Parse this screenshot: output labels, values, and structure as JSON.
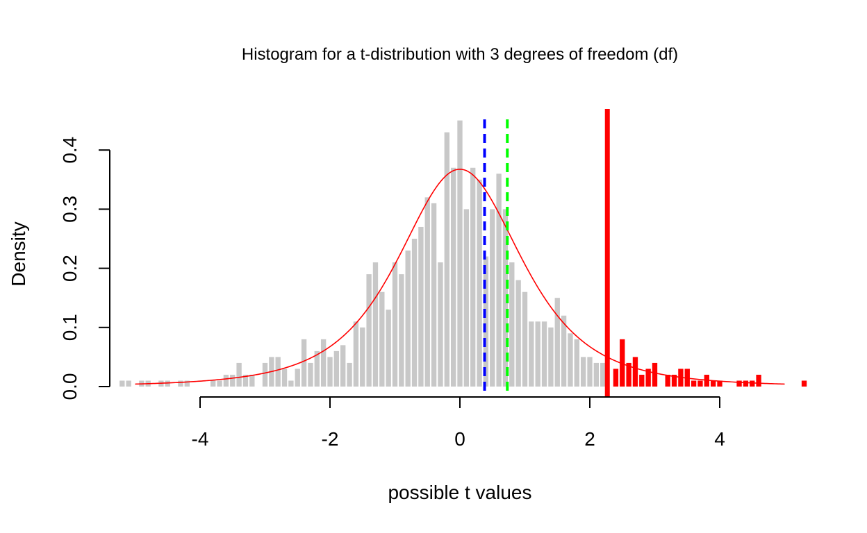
{
  "chart_data": {
    "type": "histogram",
    "title": "Histogram for a t-distribution with 3 degrees of freedom (df)",
    "xlabel": "possible t values",
    "ylabel": "Density",
    "xlim": [
      -5.3,
      5.35
    ],
    "ylim": [
      0,
      0.4
    ],
    "x_ticks": [
      -4,
      -2,
      0,
      2,
      4
    ],
    "x_tick_labels": [
      "-4",
      "-2",
      "0",
      "2",
      "4"
    ],
    "y_ticks": [
      0.0,
      0.1,
      0.2,
      0.3,
      0.4
    ],
    "y_tick_labels": [
      "0.0",
      "0.1",
      "0.2",
      "0.3",
      "0.4"
    ],
    "bin_width": 0.1,
    "bins": [
      {
        "x": -5.2,
        "density": 0.01
      },
      {
        "x": -5.1,
        "density": 0.01
      },
      {
        "x": -4.9,
        "density": 0.01
      },
      {
        "x": -4.8,
        "density": 0.01
      },
      {
        "x": -4.6,
        "density": 0.01
      },
      {
        "x": -4.5,
        "density": 0.01
      },
      {
        "x": -4.3,
        "density": 0.01
      },
      {
        "x": -4.2,
        "density": 0.01
      },
      {
        "x": -3.8,
        "density": 0.01
      },
      {
        "x": -3.7,
        "density": 0.01
      },
      {
        "x": -3.6,
        "density": 0.02
      },
      {
        "x": -3.5,
        "density": 0.02
      },
      {
        "x": -3.4,
        "density": 0.04
      },
      {
        "x": -3.3,
        "density": 0.02
      },
      {
        "x": -3.2,
        "density": 0.02
      },
      {
        "x": -3.0,
        "density": 0.04
      },
      {
        "x": -2.9,
        "density": 0.05
      },
      {
        "x": -2.8,
        "density": 0.05
      },
      {
        "x": -2.7,
        "density": 0.03
      },
      {
        "x": -2.6,
        "density": 0.01
      },
      {
        "x": -2.5,
        "density": 0.03
      },
      {
        "x": -2.4,
        "density": 0.08
      },
      {
        "x": -2.3,
        "density": 0.04
      },
      {
        "x": -2.2,
        "density": 0.06
      },
      {
        "x": -2.1,
        "density": 0.08
      },
      {
        "x": -2.0,
        "density": 0.05
      },
      {
        "x": -1.9,
        "density": 0.06
      },
      {
        "x": -1.8,
        "density": 0.07
      },
      {
        "x": -1.7,
        "density": 0.04
      },
      {
        "x": -1.6,
        "density": 0.11
      },
      {
        "x": -1.5,
        "density": 0.1
      },
      {
        "x": -1.4,
        "density": 0.19
      },
      {
        "x": -1.3,
        "density": 0.21
      },
      {
        "x": -1.2,
        "density": 0.16
      },
      {
        "x": -1.1,
        "density": 0.13
      },
      {
        "x": -1.0,
        "density": 0.21
      },
      {
        "x": -0.9,
        "density": 0.19
      },
      {
        "x": -0.8,
        "density": 0.23
      },
      {
        "x": -0.7,
        "density": 0.25
      },
      {
        "x": -0.6,
        "density": 0.27
      },
      {
        "x": -0.5,
        "density": 0.32
      },
      {
        "x": -0.4,
        "density": 0.31
      },
      {
        "x": -0.3,
        "density": 0.21
      },
      {
        "x": -0.2,
        "density": 0.43
      },
      {
        "x": -0.1,
        "density": 0.37
      },
      {
        "x": 0.0,
        "density": 0.45
      },
      {
        "x": 0.1,
        "density": 0.3
      },
      {
        "x": 0.2,
        "density": 0.37
      },
      {
        "x": 0.3,
        "density": 0.35
      },
      {
        "x": 0.4,
        "density": 0.22
      },
      {
        "x": 0.5,
        "density": 0.3
      },
      {
        "x": 0.6,
        "density": 0.36
      },
      {
        "x": 0.7,
        "density": 0.3
      },
      {
        "x": 0.8,
        "density": 0.21
      },
      {
        "x": 0.9,
        "density": 0.18
      },
      {
        "x": 1.0,
        "density": 0.16
      },
      {
        "x": 1.1,
        "density": 0.11
      },
      {
        "x": 1.2,
        "density": 0.11
      },
      {
        "x": 1.3,
        "density": 0.11
      },
      {
        "x": 1.4,
        "density": 0.1
      },
      {
        "x": 1.5,
        "density": 0.15
      },
      {
        "x": 1.6,
        "density": 0.12
      },
      {
        "x": 1.7,
        "density": 0.09
      },
      {
        "x": 1.8,
        "density": 0.08
      },
      {
        "x": 1.9,
        "density": 0.05
      },
      {
        "x": 2.0,
        "density": 0.05
      },
      {
        "x": 2.1,
        "density": 0.04
      },
      {
        "x": 2.2,
        "density": 0.04
      },
      {
        "x": 2.4,
        "density": 0.03
      },
      {
        "x": 2.5,
        "density": 0.08
      },
      {
        "x": 2.6,
        "density": 0.04
      },
      {
        "x": 2.7,
        "density": 0.05
      },
      {
        "x": 2.8,
        "density": 0.02
      },
      {
        "x": 2.9,
        "density": 0.03
      },
      {
        "x": 3.0,
        "density": 0.04
      },
      {
        "x": 3.2,
        "density": 0.02
      },
      {
        "x": 3.3,
        "density": 0.02
      },
      {
        "x": 3.4,
        "density": 0.03
      },
      {
        "x": 3.5,
        "density": 0.03
      },
      {
        "x": 3.6,
        "density": 0.01
      },
      {
        "x": 3.7,
        "density": 0.01
      },
      {
        "x": 3.8,
        "density": 0.02
      },
      {
        "x": 3.9,
        "density": 0.01
      },
      {
        "x": 4.0,
        "density": 0.01
      },
      {
        "x": 4.3,
        "density": 0.01
      },
      {
        "x": 4.4,
        "density": 0.01
      },
      {
        "x": 4.5,
        "density": 0.01
      },
      {
        "x": 4.6,
        "density": 0.02
      },
      {
        "x": 5.3,
        "density": 0.01
      }
    ],
    "critical_value": 2.27,
    "density_curve": {
      "df": 3,
      "color": "#ff0000",
      "x_range": [
        -5,
        5
      ]
    },
    "reference_lines": [
      {
        "x": 0.38,
        "color": "#0000ff",
        "style": "dashed"
      },
      {
        "x": 0.73,
        "color": "#00ff00",
        "style": "dashed"
      },
      {
        "x": 2.27,
        "color": "#ff0000",
        "style": "solid"
      }
    ],
    "colors": {
      "bar": "#c8c8c8",
      "tail_bar": "#ff0000",
      "axis": "#000000"
    }
  }
}
